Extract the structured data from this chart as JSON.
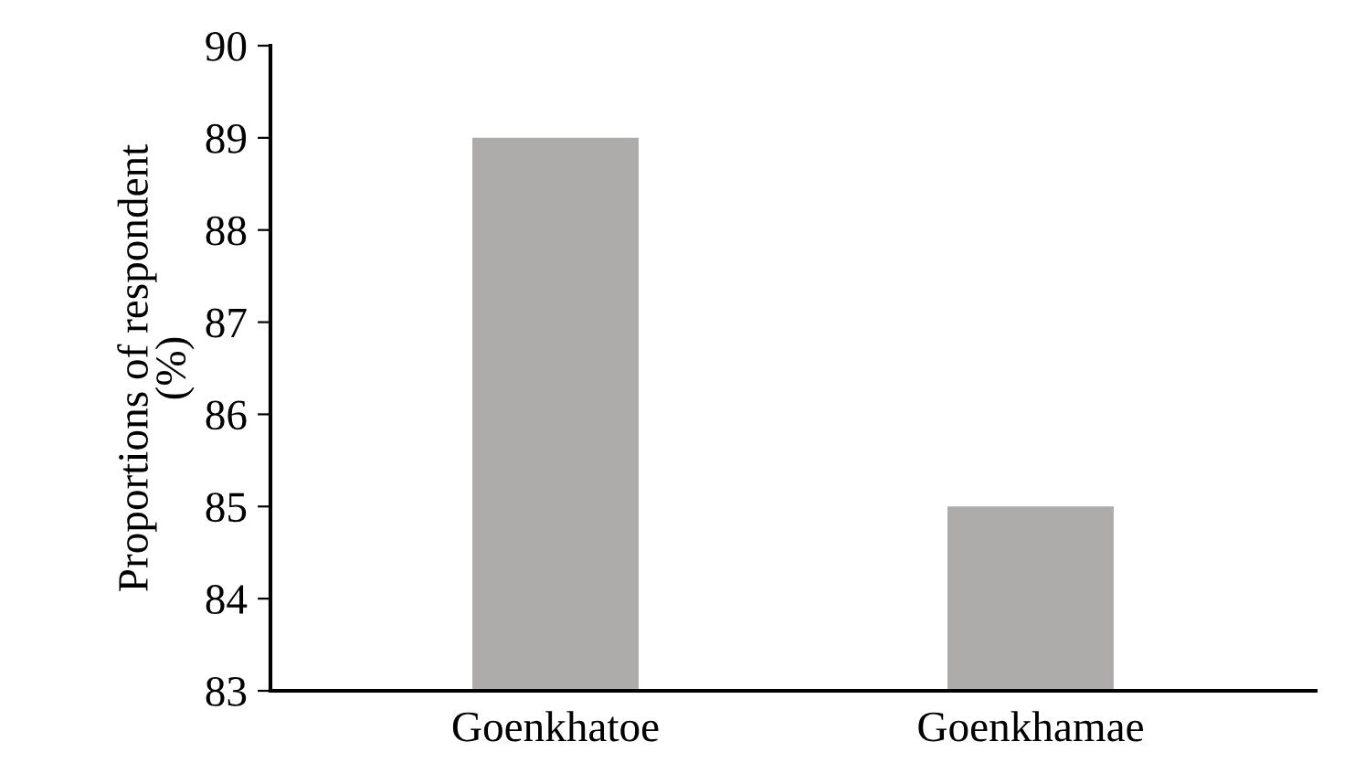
{
  "chart_data": {
    "type": "bar",
    "ylabel": "Proportions of respondent\n(%)",
    "categories": [
      "Goenkhatoe",
      "Goenkhamae"
    ],
    "values": [
      89,
      85
    ],
    "color": "#aeabab",
    "ylim": [
      83,
      90
    ],
    "yticks": [
      83,
      84,
      85,
      86,
      87,
      88,
      89,
      90
    ],
    "grid": false
  }
}
